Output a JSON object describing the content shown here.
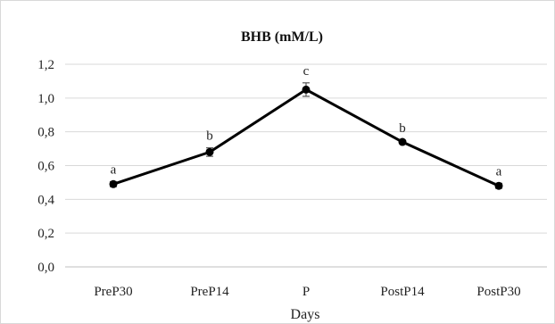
{
  "chart_data": {
    "type": "line",
    "title": "BHB (mM/L)",
    "xlabel": "Days",
    "ylabel": "",
    "categories": [
      "PreP30",
      "PreP14",
      "P",
      "PostP14",
      "PostP30"
    ],
    "series": [
      {
        "values": [
          0.49,
          0.68,
          1.05,
          0.74,
          0.48
        ],
        "error": [
          0.015,
          0.025,
          0.04,
          0.01,
          0.015
        ],
        "significance": [
          "a",
          "b",
          "c",
          "b",
          "a"
        ],
        "color": "#000000"
      }
    ],
    "ylim": [
      0,
      1.2
    ],
    "yticks": [
      "0,0",
      "0,2",
      "0,4",
      "0,6",
      "0,8",
      "1,0",
      "1,2"
    ],
    "grid": true,
    "legend": "none"
  }
}
